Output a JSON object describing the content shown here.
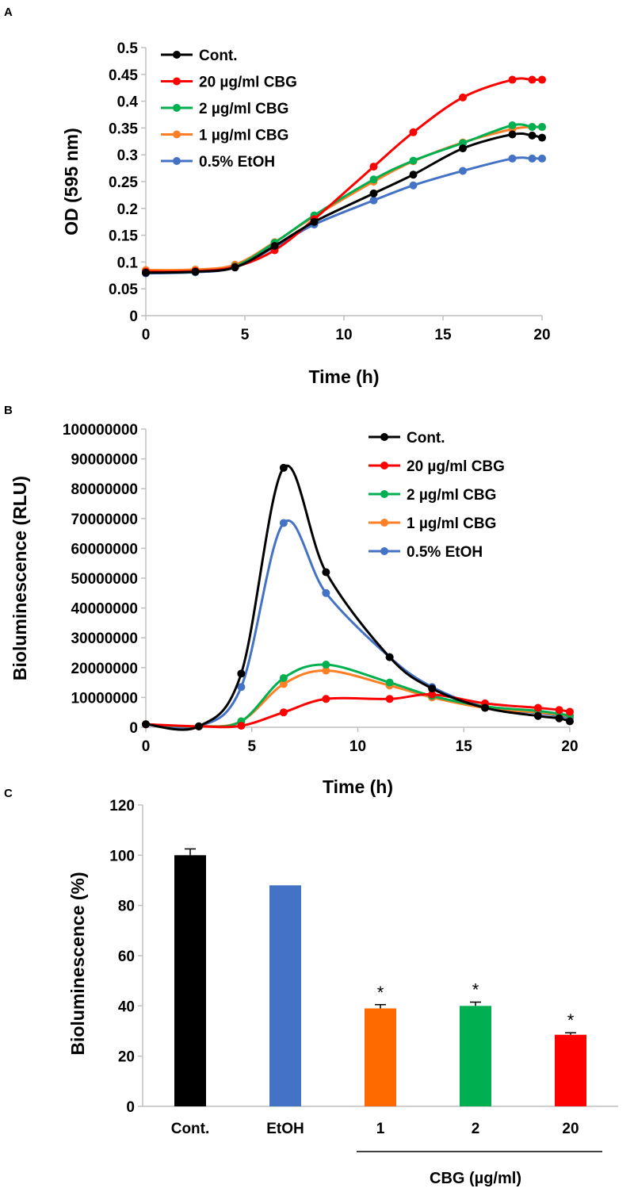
{
  "chart_data": [
    {
      "panel_label": "A",
      "type": "line",
      "xlabel": "Time (h)",
      "ylabel": "OD (595 nm)",
      "xlim": [
        0,
        20
      ],
      "ylim": [
        0,
        0.5
      ],
      "xticks": [
        "0",
        "5",
        "10",
        "15",
        "20"
      ],
      "yticks": [
        "0",
        "0.05",
        "0.1",
        "0.15",
        "0.2",
        "0.25",
        "0.3",
        "0.35",
        "0.4",
        "0.45",
        "0.5"
      ],
      "legend_position": "top-left",
      "x": [
        0,
        2.5,
        4.5,
        6.5,
        8.5,
        11.5,
        13.5,
        16,
        18.5,
        19.5,
        20
      ],
      "series": [
        {
          "name": "Cont.",
          "color": "#000000",
          "values": [
            0.08,
            0.082,
            0.09,
            0.13,
            0.175,
            0.228,
            0.263,
            0.312,
            0.338,
            0.336,
            0.332
          ]
        },
        {
          "name": "20 µg/ml CBG",
          "color": "#ff0000",
          "values": [
            0.082,
            0.083,
            0.091,
            0.122,
            0.18,
            0.278,
            0.342,
            0.407,
            0.44,
            0.44,
            0.44
          ]
        },
        {
          "name": "2 µg/ml CBG",
          "color": "#00b050",
          "values": [
            0.081,
            0.082,
            0.092,
            0.136,
            0.187,
            0.254,
            0.289,
            0.322,
            0.355,
            0.352,
            0.352
          ]
        },
        {
          "name": "1 µg/ml CBG",
          "color": "#ff7f27",
          "values": [
            0.085,
            0.086,
            0.095,
            0.137,
            0.185,
            0.25,
            0.288,
            0.323,
            0.348,
            0.352,
            0.352
          ]
        },
        {
          "name": "0.5% EtOH",
          "color": "#4472c4",
          "values": [
            0.079,
            0.081,
            0.09,
            0.128,
            0.17,
            0.215,
            0.243,
            0.27,
            0.293,
            0.293,
            0.293
          ]
        }
      ]
    },
    {
      "panel_label": "B",
      "type": "line",
      "xlabel": "Time (h)",
      "ylabel": "Bioluminescence (RLU)",
      "xlim": [
        0,
        20
      ],
      "ylim": [
        0,
        100000000
      ],
      "xticks": [
        "0",
        "5",
        "10",
        "15",
        "20"
      ],
      "yticks": [
        "0",
        "10000000",
        "20000000",
        "30000000",
        "40000000",
        "50000000",
        "60000000",
        "70000000",
        "80000000",
        "90000000",
        "100000000"
      ],
      "legend_position": "top-right",
      "x": [
        0,
        2.5,
        4.5,
        6.5,
        8.5,
        11.5,
        13.5,
        16,
        18.5,
        19.5,
        20
      ],
      "series": [
        {
          "name": "Cont.",
          "color": "#000000",
          "values": [
            1000000,
            300000,
            18000000,
            87000000,
            52000000,
            23500000,
            13000000,
            6500000,
            3800000,
            3000000,
            2000000
          ]
        },
        {
          "name": "20 µg/ml CBG",
          "color": "#ff0000",
          "values": [
            1000000,
            300000,
            500000,
            5000000,
            9500000,
            9500000,
            11000000,
            8000000,
            6500000,
            5800000,
            5200000
          ]
        },
        {
          "name": "2 µg/ml CBG",
          "color": "#00b050",
          "values": [
            1000000,
            300000,
            2000000,
            16500000,
            21000000,
            15000000,
            10500000,
            7000000,
            5500000,
            4500000,
            4000000
          ]
        },
        {
          "name": "1 µg/ml CBG",
          "color": "#ff7f27",
          "values": [
            1000000,
            300000,
            2000000,
            14500000,
            19000000,
            14000000,
            10000000,
            6500000,
            5000000,
            4200000,
            3800000
          ]
        },
        {
          "name": "0.5% EtOH",
          "color": "#4472c4",
          "values": [
            1000000,
            300000,
            13500000,
            68500000,
            45000000,
            23500000,
            13500000,
            6800000,
            4800000,
            3800000,
            3200000
          ]
        }
      ]
    },
    {
      "panel_label": "C",
      "type": "bar",
      "ylabel": "Bioluminescence (%)",
      "ylim": [
        0,
        120
      ],
      "yticks": [
        "0",
        "20",
        "40",
        "60",
        "80",
        "100",
        "120"
      ],
      "categories": [
        "Cont.",
        "EtOH",
        "1",
        "2",
        "20"
      ],
      "values": [
        100,
        88,
        39,
        40,
        28.5
      ],
      "errors": [
        2.5,
        0,
        1.5,
        1.5,
        0.8
      ],
      "colors": [
        "#000000",
        "#4472c4",
        "#ff6a00",
        "#00b050",
        "#ff0000"
      ],
      "significance": [
        "",
        "",
        "*",
        "*",
        "*"
      ],
      "group_label": "CBG (µg/ml)"
    }
  ]
}
